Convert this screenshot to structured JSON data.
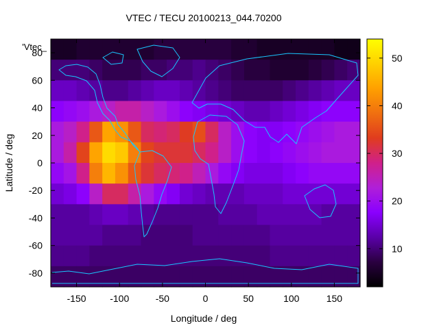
{
  "chart_data": {
    "type": "heatmap",
    "title": "VTEC / TECU 20100213_044.70200",
    "xlabel": "Longitude / deg",
    "ylabel": "Latitude / deg",
    "xlim": [
      -180,
      180
    ],
    "ylim": [
      -90,
      90
    ],
    "x_ticks": [
      -150,
      -100,
      -50,
      0,
      50,
      100,
      150
    ],
    "y_ticks": [
      -80,
      -60,
      -40,
      -20,
      0,
      20,
      40,
      60,
      80
    ],
    "key_label": "'Vtec_",
    "colorbar": {
      "min": 2,
      "max": 54,
      "ticks": [
        10,
        20,
        30,
        40,
        50
      ]
    },
    "colormap": [
      "#000000",
      "#2a0040",
      "#5a00a8",
      "#8a00ff",
      "#b01fd8",
      "#d0208a",
      "#e03c1e",
      "#f07010",
      "#ffa000",
      "#ffd000",
      "#ffff00"
    ],
    "grid": {
      "lon_step": 15,
      "lat_step": 15,
      "lon_start": -180,
      "lat_start": 90,
      "values": [
        [
          5,
          5,
          6,
          6,
          6,
          6,
          6,
          6,
          7,
          7,
          7,
          7,
          7,
          7,
          6,
          6,
          5,
          5,
          5,
          5,
          5,
          5,
          4,
          4
        ],
        [
          10,
          10,
          10,
          9,
          8,
          8,
          8,
          9,
          9,
          10,
          10,
          11,
          10,
          9,
          8,
          7,
          7,
          6,
          6,
          6,
          7,
          8,
          9,
          10
        ],
        [
          14,
          14,
          13,
          12,
          11,
          11,
          12,
          13,
          14,
          14,
          13,
          12,
          11,
          10,
          9,
          9,
          9,
          9,
          10,
          11,
          12,
          13,
          14,
          14
        ],
        [
          18,
          19,
          20,
          22,
          24,
          26,
          26,
          24,
          22,
          20,
          18,
          17,
          16,
          15,
          14,
          13,
          13,
          14,
          15,
          16,
          17,
          18,
          18,
          18
        ],
        [
          22,
          24,
          28,
          36,
          44,
          42,
          36,
          30,
          29,
          30,
          33,
          35,
          30,
          24,
          20,
          18,
          17,
          17,
          18,
          19,
          20,
          21,
          22,
          22
        ],
        [
          22,
          26,
          34,
          44,
          50,
          48,
          40,
          34,
          32,
          32,
          32,
          30,
          28,
          24,
          20,
          18,
          17,
          18,
          19,
          20,
          21,
          22,
          22,
          22
        ],
        [
          19,
          21,
          28,
          40,
          46,
          42,
          36,
          32,
          30,
          29,
          28,
          25,
          22,
          19,
          17,
          16,
          16,
          16,
          17,
          18,
          19,
          19,
          19,
          19
        ],
        [
          15,
          16,
          18,
          24,
          30,
          30,
          26,
          22,
          19,
          17,
          15,
          14,
          13,
          13,
          13,
          14,
          14,
          14,
          15,
          15,
          15,
          15,
          15,
          15
        ],
        [
          12,
          12,
          12,
          13,
          14,
          14,
          13,
          12,
          11,
          11,
          11,
          11,
          11,
          12,
          12,
          12,
          13,
          13,
          13,
          13,
          13,
          12,
          12,
          12
        ],
        [
          12,
          12,
          12,
          12,
          11,
          11,
          11,
          10,
          10,
          10,
          10,
          11,
          11,
          11,
          11,
          11,
          11,
          12,
          12,
          12,
          12,
          12,
          12,
          12
        ],
        [
          11,
          11,
          11,
          10,
          10,
          10,
          10,
          10,
          10,
          10,
          10,
          10,
          10,
          10,
          10,
          10,
          10,
          11,
          11,
          11,
          11,
          11,
          11,
          11
        ],
        [
          9,
          9,
          9,
          9,
          9,
          9,
          9,
          9,
          9,
          9,
          9,
          9,
          9,
          9,
          9,
          9,
          9,
          9,
          9,
          9,
          9,
          9,
          9,
          9
        ]
      ]
    }
  }
}
